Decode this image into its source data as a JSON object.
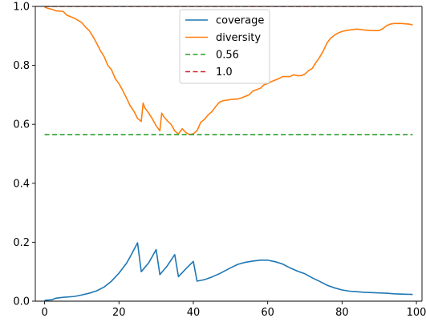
{
  "chart_data": {
    "type": "line",
    "title": "",
    "xlabel": "",
    "ylabel": "",
    "xlim": [
      -2.5,
      101.5
    ],
    "ylim": [
      0.0,
      1.0
    ],
    "xticks": [
      0,
      20,
      40,
      60,
      80,
      100
    ],
    "yticks": [
      0.0,
      0.2,
      0.4,
      0.6,
      0.8,
      1.0
    ],
    "xtick_labels": [
      "0",
      "20",
      "40",
      "60",
      "80",
      "100"
    ],
    "ytick_labels": [
      "0.0",
      "0.2",
      "0.4",
      "0.6",
      "0.8",
      "1.0"
    ],
    "grid": false,
    "legend_position": "top-center",
    "series": [
      {
        "name": "coverage",
        "color": "#1f77b4",
        "style": "solid",
        "points": [
          [
            0,
            0.003
          ],
          [
            2,
            0.005
          ],
          [
            3,
            0.01
          ],
          [
            5,
            0.013
          ],
          [
            8,
            0.016
          ],
          [
            10,
            0.021
          ],
          [
            12,
            0.027
          ],
          [
            14,
            0.035
          ],
          [
            16,
            0.048
          ],
          [
            18,
            0.068
          ],
          [
            20,
            0.095
          ],
          [
            22,
            0.128
          ],
          [
            23,
            0.15
          ],
          [
            25,
            0.198
          ],
          [
            26,
            0.1
          ],
          [
            28,
            0.13
          ],
          [
            30,
            0.175
          ],
          [
            31,
            0.09
          ],
          [
            33,
            0.12
          ],
          [
            35,
            0.158
          ],
          [
            36,
            0.083
          ],
          [
            38,
            0.11
          ],
          [
            40,
            0.135
          ],
          [
            41,
            0.068
          ],
          [
            43,
            0.073
          ],
          [
            45,
            0.082
          ],
          [
            47,
            0.093
          ],
          [
            50,
            0.113
          ],
          [
            52,
            0.125
          ],
          [
            54,
            0.132
          ],
          [
            56,
            0.136
          ],
          [
            58,
            0.139
          ],
          [
            60,
            0.139
          ],
          [
            62,
            0.134
          ],
          [
            64,
            0.126
          ],
          [
            66,
            0.113
          ],
          [
            68,
            0.102
          ],
          [
            70,
            0.093
          ],
          [
            72,
            0.079
          ],
          [
            74,
            0.067
          ],
          [
            76,
            0.054
          ],
          [
            78,
            0.045
          ],
          [
            80,
            0.038
          ],
          [
            82,
            0.034
          ],
          [
            84,
            0.032
          ],
          [
            86,
            0.03
          ],
          [
            88,
            0.029
          ],
          [
            90,
            0.028
          ],
          [
            92,
            0.027
          ],
          [
            94,
            0.025
          ],
          [
            96,
            0.024
          ],
          [
            99,
            0.023
          ]
        ]
      },
      {
        "name": "diversity",
        "color": "#ff7f0e",
        "style": "solid",
        "points": [
          [
            0,
            0.998
          ],
          [
            1,
            0.993
          ],
          [
            2,
            0.99
          ],
          [
            3,
            0.985
          ],
          [
            5,
            0.983
          ],
          [
            6,
            0.97
          ],
          [
            8,
            0.96
          ],
          [
            10,
            0.945
          ],
          [
            11,
            0.93
          ],
          [
            12,
            0.918
          ],
          [
            13,
            0.898
          ],
          [
            14,
            0.875
          ],
          [
            15,
            0.85
          ],
          [
            16,
            0.83
          ],
          [
            17,
            0.8
          ],
          [
            18,
            0.785
          ],
          [
            19,
            0.755
          ],
          [
            20,
            0.738
          ],
          [
            21,
            0.715
          ],
          [
            22,
            0.69
          ],
          [
            23,
            0.663
          ],
          [
            24,
            0.645
          ],
          [
            25,
            0.62
          ],
          [
            26,
            0.61
          ],
          [
            26.5,
            0.672
          ],
          [
            27,
            0.655
          ],
          [
            28,
            0.638
          ],
          [
            29,
            0.618
          ],
          [
            30,
            0.595
          ],
          [
            31,
            0.578
          ],
          [
            31.5,
            0.638
          ],
          [
            32,
            0.627
          ],
          [
            33,
            0.612
          ],
          [
            34,
            0.6
          ],
          [
            35,
            0.578
          ],
          [
            36,
            0.567
          ],
          [
            37,
            0.585
          ],
          [
            38,
            0.572
          ],
          [
            39,
            0.565
          ],
          [
            40,
            0.568
          ],
          [
            41,
            0.578
          ],
          [
            42,
            0.607
          ],
          [
            43,
            0.617
          ],
          [
            44,
            0.632
          ],
          [
            45,
            0.643
          ],
          [
            46,
            0.66
          ],
          [
            47,
            0.675
          ],
          [
            48,
            0.68
          ],
          [
            50,
            0.684
          ],
          [
            52,
            0.686
          ],
          [
            53,
            0.69
          ],
          [
            55,
            0.7
          ],
          [
            56,
            0.713
          ],
          [
            58,
            0.722
          ],
          [
            59,
            0.734
          ],
          [
            60,
            0.738
          ],
          [
            61,
            0.745
          ],
          [
            62,
            0.75
          ],
          [
            63,
            0.755
          ],
          [
            64,
            0.762
          ],
          [
            66,
            0.762
          ],
          [
            67,
            0.768
          ],
          [
            68,
            0.765
          ],
          [
            69,
            0.765
          ],
          [
            70,
            0.77
          ],
          [
            71,
            0.782
          ],
          [
            72,
            0.79
          ],
          [
            73,
            0.81
          ],
          [
            74,
            0.828
          ],
          [
            75,
            0.85
          ],
          [
            76,
            0.877
          ],
          [
            77,
            0.893
          ],
          [
            78,
            0.903
          ],
          [
            79,
            0.91
          ],
          [
            80,
            0.915
          ],
          [
            81,
            0.918
          ],
          [
            82,
            0.92
          ],
          [
            84,
            0.923
          ],
          [
            86,
            0.92
          ],
          [
            88,
            0.918
          ],
          [
            90,
            0.918
          ],
          [
            91,
            0.925
          ],
          [
            92,
            0.935
          ],
          [
            93,
            0.94
          ],
          [
            94,
            0.942
          ],
          [
            96,
            0.942
          ],
          [
            98,
            0.94
          ],
          [
            99,
            0.937
          ]
        ]
      },
      {
        "name": "0.56",
        "color": "#2ca02c",
        "style": "dashed",
        "points": [
          [
            0,
            0.565
          ],
          [
            99,
            0.565
          ]
        ]
      },
      {
        "name": "1.0",
        "color": "#d62728",
        "style": "dashed",
        "points": [
          [
            0,
            1.0
          ],
          [
            99,
            1.0
          ]
        ]
      }
    ]
  }
}
